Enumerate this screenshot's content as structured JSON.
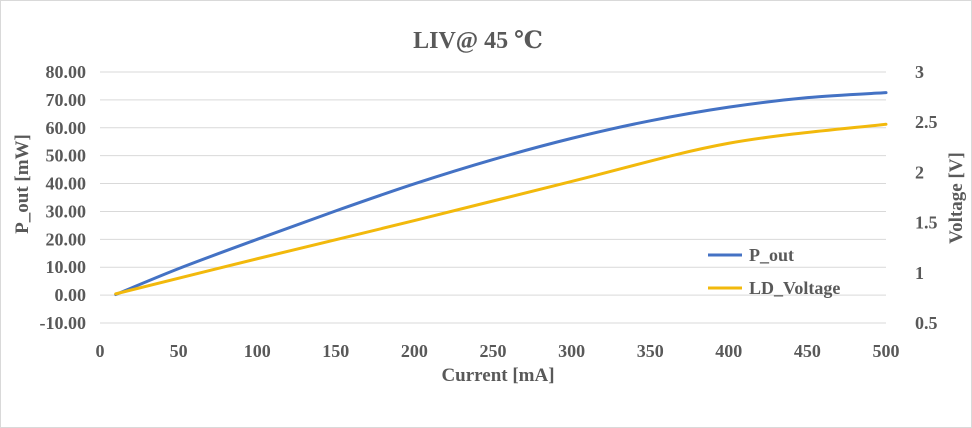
{
  "chart_data": {
    "type": "line",
    "title": "LIV@ 45 ℃",
    "xlabel": "Current [mA]",
    "ylabel": "P_out [mW]",
    "y2label": "Voltage [V]",
    "xlim": [
      0,
      500
    ],
    "ylim": [
      -10,
      80
    ],
    "y2lim": [
      0.5,
      3
    ],
    "x_ticks": [
      "0",
      "50",
      "100",
      "150",
      "200",
      "250",
      "300",
      "350",
      "400",
      "450",
      "500"
    ],
    "y_ticks": [
      "80.00",
      "70.00",
      "60.00",
      "50.00",
      "40.00",
      "30.00",
      "20.00",
      "10.00",
      "0.00",
      "-10.00"
    ],
    "y2_ticks": [
      "3",
      "2.5",
      "2",
      "1.5",
      "1",
      "0.5"
    ],
    "grid": true,
    "legend_position": "right",
    "series": [
      {
        "name": "P_out",
        "axis": "left",
        "color": "#4472c4",
        "x": [
          10,
          50,
          100,
          150,
          200,
          250,
          300,
          350,
          400,
          450,
          500
        ],
        "values": [
          0.2,
          9.5,
          20.0,
          30.2,
          39.9,
          48.6,
          56.2,
          62.5,
          67.4,
          70.8,
          72.6
        ]
      },
      {
        "name": "LD_Voltage",
        "axis": "right",
        "color": "#f2b90c",
        "x": [
          10,
          100,
          200,
          300,
          400,
          500
        ],
        "values": [
          0.79,
          1.14,
          1.52,
          1.91,
          2.29,
          2.48
        ]
      }
    ]
  }
}
